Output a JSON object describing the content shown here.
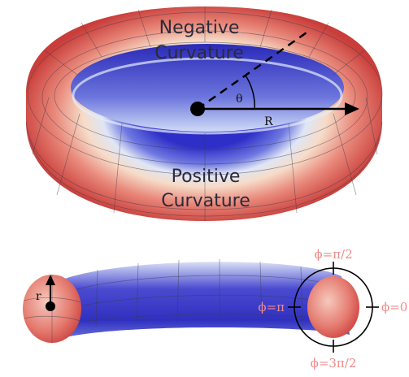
{
  "top_torus": {
    "negative_label_line1": "Negative",
    "negative_label_line2": "Curvature",
    "positive_label_line1": "Positive",
    "positive_label_line2": "Curvature",
    "theta_label": "θ",
    "radius_label": "R"
  },
  "cross_section": {
    "minor_radius_label": "r",
    "phi_top": "ϕ=π/2",
    "phi_left": "ϕ=π",
    "phi_right": "ϕ=0",
    "phi_bottom": "ϕ=3π/2"
  },
  "colors": {
    "positive_outer": "#d9534f",
    "warm_mid": "#f4d9c6",
    "cool_mid": "#c9d6f4",
    "negative_inner": "#3a3acb",
    "phi_labels": "#f08a8a"
  },
  "icons": {
    "radius_arrow": "arrow-right-icon",
    "minor_radius_arrow": "arrow-up-icon",
    "center_point": "center-dot-icon"
  }
}
